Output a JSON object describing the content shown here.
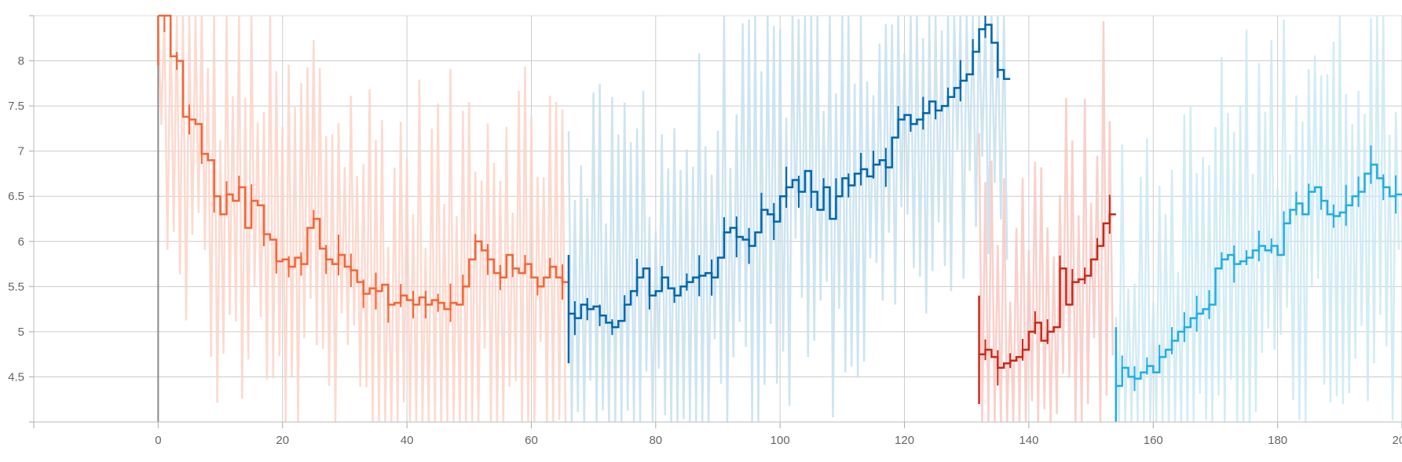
{
  "chart_data": {
    "type": "line",
    "title": "",
    "xlabel": "",
    "ylabel": "",
    "xlim": [
      -20,
      200
    ],
    "ylim": [
      4,
      8.5
    ],
    "x_ticks": [
      0,
      20,
      40,
      60,
      80,
      100,
      120,
      140,
      160,
      180,
      200
    ],
    "y_ticks": [
      4.5,
      5,
      5.5,
      6,
      6.5,
      7,
      7.5,
      8
    ],
    "grid": true,
    "legend": "none",
    "vertical_markers": [
      0
    ],
    "series": [
      {
        "color": "#f0673a",
        "band_color": "#fbd3c8",
        "x_start": 0,
        "values": [
          8.5,
          8.5,
          8.05,
          8.0,
          7.38,
          7.35,
          7.3,
          6.97,
          6.9,
          6.5,
          6.3,
          6.52,
          6.45,
          6.6,
          6.15,
          6.45,
          6.4,
          6.08,
          6.02,
          5.78,
          5.8,
          5.72,
          5.82,
          5.75,
          6.15,
          6.25,
          5.92,
          5.8,
          5.75,
          5.85,
          5.72,
          5.68,
          5.55,
          5.42,
          5.48,
          5.45,
          5.52,
          5.3,
          5.32,
          5.4,
          5.35,
          5.3,
          5.38,
          5.3,
          5.35,
          5.32,
          5.25,
          5.32,
          5.3,
          5.5,
          5.8,
          6.0,
          5.9,
          5.8,
          5.65,
          5.6,
          5.85,
          5.7,
          5.65,
          5.75,
          5.6,
          5.5,
          5.6,
          5.72,
          5.6,
          5.55
        ]
      },
      {
        "color": "#0066a9",
        "band_color": "#c5dfee",
        "x_start": 66,
        "values": [
          5.2,
          5.15,
          5.3,
          5.25,
          5.28,
          5.18,
          5.1,
          5.05,
          5.12,
          5.3,
          5.45,
          5.6,
          5.7,
          5.4,
          5.45,
          5.6,
          5.48,
          5.4,
          5.5,
          5.55,
          5.6,
          5.62,
          5.65,
          5.6,
          5.82,
          6.1,
          6.15,
          6.05,
          6.02,
          5.95,
          6.1,
          6.35,
          6.3,
          6.22,
          6.5,
          6.6,
          6.68,
          6.55,
          6.78,
          6.55,
          6.35,
          6.6,
          6.25,
          6.5,
          6.7,
          6.62,
          6.75,
          6.8,
          6.72,
          6.85,
          6.9,
          6.82,
          7.15,
          7.35,
          7.4,
          7.3,
          7.35,
          7.42,
          7.55,
          7.45,
          7.5,
          7.6,
          7.7,
          7.78,
          7.85,
          8.1,
          8.35,
          8.4,
          8.2,
          7.9,
          7.8
        ]
      },
      {
        "color": "#c52a1c",
        "band_color": "#f8c8c2",
        "x_start": 132,
        "values": [
          4.75,
          4.8,
          4.72,
          4.6,
          4.65,
          4.68,
          4.72,
          4.8,
          5.0,
          5.1,
          4.9,
          5.0,
          5.05,
          5.7,
          5.3,
          5.55,
          5.58,
          5.62,
          5.8,
          5.95,
          6.2,
          6.3
        ]
      },
      {
        "color": "#22aee0",
        "band_color": "#cbe9f5",
        "x_start": 154,
        "values": [
          4.4,
          4.6,
          4.5,
          4.48,
          4.55,
          4.62,
          4.55,
          4.72,
          4.8,
          4.9,
          5.0,
          5.05,
          5.15,
          5.2,
          5.25,
          5.3,
          5.7,
          5.8,
          5.85,
          5.75,
          5.78,
          5.82,
          5.9,
          5.95,
          5.9,
          5.95,
          5.85,
          6.2,
          6.35,
          6.42,
          6.3,
          6.55,
          6.6,
          6.45,
          6.3,
          6.28,
          6.32,
          6.4,
          6.5,
          6.55,
          6.75,
          6.85,
          6.7,
          6.6,
          6.5,
          6.52
        ]
      }
    ]
  }
}
